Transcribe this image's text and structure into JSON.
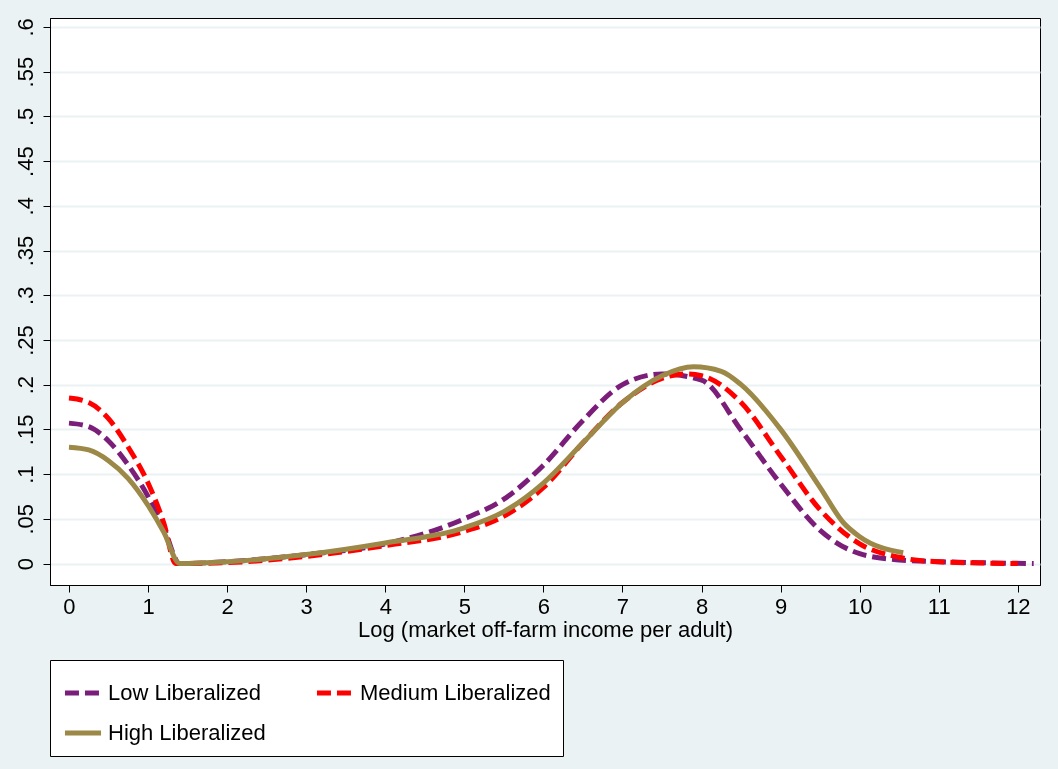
{
  "chart_data": {
    "type": "line",
    "xlabel": "Log (market off-farm income per adult)",
    "xlim": [
      -0.24,
      12.28
    ],
    "ylim": [
      -0.024,
      0.61
    ],
    "xticks": [
      0,
      1,
      2,
      3,
      4,
      5,
      6,
      7,
      8,
      9,
      10,
      11,
      12
    ],
    "yticks": [
      0,
      {
        "value": 0.05,
        "label": ".05"
      },
      {
        "value": 0.1,
        "label": ".1"
      },
      {
        "value": 0.15,
        "label": ".15"
      },
      {
        "value": 0.2,
        "label": ".2"
      },
      {
        "value": 0.25,
        "label": ".25"
      },
      {
        "value": 0.3,
        "label": ".3"
      },
      {
        "value": 0.35,
        "label": ".35"
      },
      {
        "value": 0.4,
        "label": ".4"
      },
      {
        "value": 0.45,
        "label": ".45"
      },
      {
        "value": 0.5,
        "label": ".5"
      },
      {
        "value": 0.55,
        "label": ".55"
      },
      {
        "value": 0.6,
        "label": ".6"
      }
    ],
    "grid": "y",
    "legend": "bottom",
    "marker": "none",
    "series": [
      {
        "name": "Low Liberalized",
        "color": "#7b1e7a",
        "line_style": "dashed",
        "x": [
          0,
          0.25,
          0.5,
          0.75,
          1,
          1.2,
          1.4,
          2,
          3,
          4,
          5,
          5.5,
          6,
          6.5,
          7,
          7.5,
          8,
          8.5,
          9,
          9.5,
          10,
          10.5,
          11,
          11.5,
          12.2
        ],
        "values": [
          0.157,
          0.153,
          0.137,
          0.11,
          0.075,
          0.04,
          0,
          0.002,
          0.01,
          0.022,
          0.05,
          0.072,
          0.11,
          0.16,
          0.2,
          0.212,
          0.205,
          0.149,
          0.089,
          0.037,
          0.011,
          0.004,
          0.002,
          0.001,
          0
        ]
      },
      {
        "name": "Medium Liberalized",
        "color": "#ff0000",
        "line_style": "dashed",
        "x": [
          0,
          0.25,
          0.5,
          0.75,
          1,
          1.2,
          1.35,
          2,
          3,
          4,
          5,
          5.5,
          6,
          6.5,
          7,
          7.5,
          7.8,
          8,
          8.5,
          9,
          9.5,
          10,
          10.5,
          11,
          12
        ],
        "values": [
          0.185,
          0.18,
          0.162,
          0.13,
          0.09,
          0.045,
          0,
          0.001,
          0.008,
          0.02,
          0.036,
          0.053,
          0.085,
          0.135,
          0.18,
          0.207,
          0.212,
          0.21,
          0.18,
          0.12,
          0.06,
          0.022,
          0.007,
          0.002,
          0
        ]
      },
      {
        "name": "High Liberalized",
        "color": "#9c8847",
        "line_style": "solid",
        "x": [
          0,
          0.25,
          0.5,
          0.75,
          1,
          1.2,
          1.4,
          2,
          3,
          4,
          5,
          5.5,
          6,
          6.5,
          7,
          7.5,
          7.9,
          8.25,
          8.5,
          9,
          9.5,
          9.8,
          10,
          10.55
        ],
        "values": [
          0.13,
          0.127,
          0.115,
          0.095,
          0.065,
          0.035,
          0,
          0.002,
          0.01,
          0.023,
          0.04,
          0.058,
          0.09,
          0.135,
          0.18,
          0.21,
          0.22,
          0.215,
          0.2,
          0.15,
          0.085,
          0.045,
          0.03,
          0.012
        ]
      }
    ]
  }
}
